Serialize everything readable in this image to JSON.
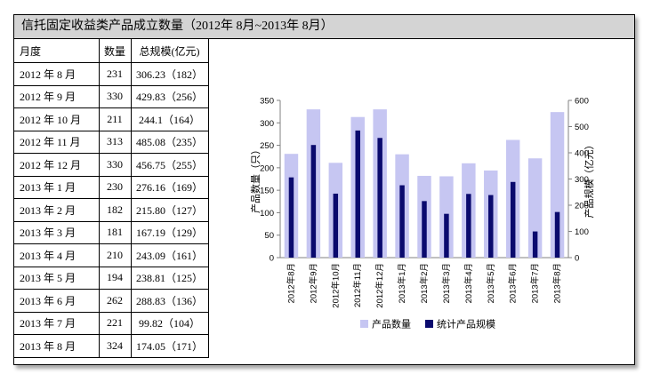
{
  "title": "信托固定收益类产品成立数量（2012年 8月~2013年 8月）",
  "table": {
    "headers": [
      "月度",
      "数量",
      "总规模(亿元)"
    ],
    "rows": [
      {
        "month": "2012 年 8 月",
        "count": "231",
        "scale": "306.23（182）"
      },
      {
        "month": "2012 年 9 月",
        "count": "330",
        "scale": "429.83（256）"
      },
      {
        "month": "2012 年 10 月",
        "count": "211",
        "scale": "244.1（164）"
      },
      {
        "month": "2012 年 11 月",
        "count": "313",
        "scale": "485.08（235）"
      },
      {
        "month": "2012 年 12 月",
        "count": "330",
        "scale": "456.75（255）"
      },
      {
        "month": "2013 年 1 月",
        "count": "230",
        "scale": "276.16（169）"
      },
      {
        "month": "2013 年 2 月",
        "count": "182",
        "scale": "215.80（127）"
      },
      {
        "month": "2013 年 3 月",
        "count": "181",
        "scale": "167.19（129）"
      },
      {
        "month": "2013 年 4 月",
        "count": "210",
        "scale": "243.09（161）"
      },
      {
        "month": "2013 年 5 月",
        "count": "194",
        "scale": "238.81（125）"
      },
      {
        "month": "2013 年 6 月",
        "count": "262",
        "scale": "288.83（136）"
      },
      {
        "month": "2013 年 7 月",
        "count": "221",
        "scale": "99.82（104）"
      },
      {
        "month": "2013 年 8 月",
        "count": "324",
        "scale": "174.05（171）"
      }
    ]
  },
  "chart_data": {
    "type": "bar",
    "categories": [
      "2012年8月",
      "2012年9月",
      "2012年10月",
      "2012年11月",
      "2012年12月",
      "2013年1月",
      "2013年2月",
      "2013年3月",
      "2013年4月",
      "2013年5月",
      "2013年6月",
      "2013年7月",
      "2013年8月"
    ],
    "series": [
      {
        "name": "产品数量",
        "axis": "left",
        "color": "#c6c6f2",
        "values": [
          231,
          330,
          211,
          313,
          330,
          230,
          182,
          181,
          210,
          194,
          262,
          221,
          324
        ]
      },
      {
        "name": "统计产品规模",
        "axis": "right",
        "color": "#0a0a6e",
        "values": [
          306.23,
          429.83,
          244.1,
          485.08,
          456.75,
          276.16,
          215.8,
          167.19,
          243.09,
          238.81,
          288.83,
          99.82,
          174.05
        ]
      }
    ],
    "ylabel": "产品数量（只）",
    "y2label": "产品规模（亿元）",
    "ylim": [
      0,
      350
    ],
    "y2lim": [
      0,
      600
    ],
    "yticks": [
      0,
      50,
      100,
      150,
      200,
      250,
      300,
      350
    ],
    "y2ticks": [
      0,
      100,
      200,
      300,
      400,
      500,
      600
    ],
    "legend_position": "bottom",
    "grid": false
  }
}
